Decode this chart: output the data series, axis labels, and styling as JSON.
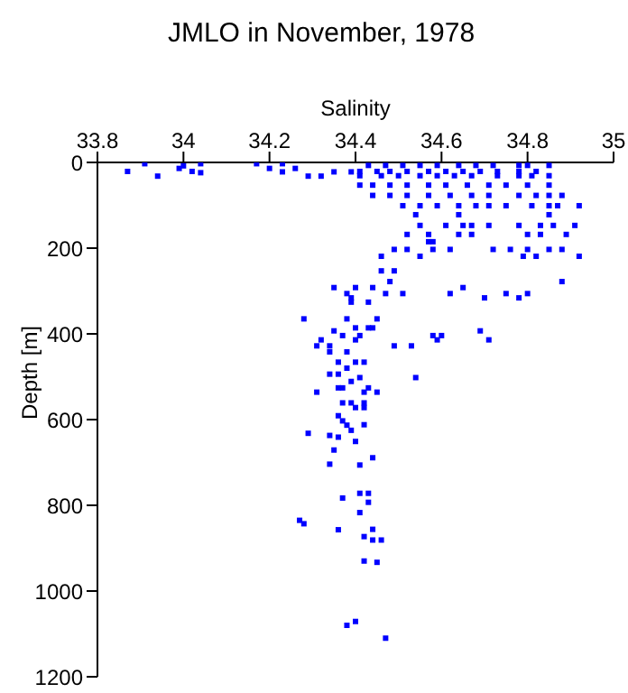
{
  "chart_data": {
    "type": "scatter",
    "title": "JMLO in November, 1978",
    "xlabel": "Salinity",
    "ylabel": "Depth [m]",
    "xlim": [
      33.8,
      35
    ],
    "xticks": [
      33.8,
      34,
      34.2,
      34.4,
      34.6,
      34.8,
      35
    ],
    "ylim": [
      1200,
      0
    ],
    "yticks": [
      0,
      200,
      400,
      600,
      800,
      1000,
      1200
    ],
    "grid": false,
    "legend": false,
    "marker": "square",
    "color": "#0000ff",
    "x": [
      33.87,
      33.91,
      33.94,
      33.99,
      34.0,
      34.02,
      34.04,
      34.04,
      34.17,
      34.2,
      34.23,
      34.23,
      34.26,
      34.29,
      34.32,
      34.35,
      34.39,
      34.43,
      34.47,
      34.51,
      34.55,
      34.59,
      34.64,
      34.68,
      34.72,
      34.78,
      34.8,
      34.85,
      34.41,
      34.45,
      34.48,
      34.52,
      34.57,
      34.61,
      34.65,
      34.69,
      34.73,
      34.78,
      34.82,
      34.41,
      34.46,
      34.5,
      34.55,
      34.59,
      34.63,
      34.67,
      34.73,
      34.78,
      34.81,
      34.85,
      34.41,
      34.44,
      34.48,
      34.52,
      34.57,
      34.61,
      34.66,
      34.71,
      34.75,
      34.8,
      34.85,
      34.44,
      34.48,
      34.52,
      34.57,
      34.62,
      34.67,
      34.71,
      34.78,
      34.82,
      34.85,
      34.88,
      34.51,
      34.55,
      34.59,
      34.64,
      34.68,
      34.71,
      34.75,
      34.81,
      34.85,
      34.87,
      34.92,
      34.54,
      34.64,
      34.85,
      34.55,
      34.61,
      34.65,
      34.67,
      34.71,
      34.78,
      34.83,
      34.86,
      34.91,
      34.52,
      34.57,
      34.64,
      34.67,
      34.8,
      34.83,
      34.89,
      34.57,
      34.58,
      34.49,
      34.52,
      34.58,
      34.62,
      34.72,
      34.76,
      34.8,
      34.85,
      34.88,
      34.46,
      34.55,
      34.79,
      34.82,
      34.92,
      34.46,
      34.49,
      34.48,
      34.88,
      34.35,
      34.4,
      34.44,
      34.65,
      34.38,
      34.47,
      34.51,
      34.62,
      34.75,
      34.8,
      34.39,
      34.7,
      34.78,
      34.39,
      34.43,
      34.28,
      34.38,
      34.45,
      34.4,
      34.43,
      34.44,
      34.35,
      34.69,
      34.37,
      34.41,
      34.58,
      34.6,
      34.32,
      34.4,
      34.59,
      34.71,
      34.31,
      34.34,
      34.49,
      34.53,
      34.34,
      34.38,
      34.36,
      34.4,
      34.42,
      34.38,
      34.34,
      34.36,
      34.41,
      34.54,
      34.39,
      34.36,
      34.37,
      34.43,
      34.31,
      34.42,
      34.45,
      34.37,
      34.39,
      34.42,
      34.4,
      34.42,
      34.36,
      34.37,
      34.38,
      34.39,
      34.29,
      34.34,
      34.36,
      34.4,
      34.42,
      34.35,
      34.44,
      34.34,
      34.41,
      34.37,
      34.41,
      34.43,
      34.43,
      34.41,
      34.27,
      34.28,
      34.36,
      34.44,
      34.42,
      34.44,
      34.46,
      34.42,
      34.45,
      34.4,
      34.38,
      34.47
    ],
    "values": [
      21,
      3,
      32,
      14,
      8,
      21,
      24,
      3,
      3,
      14,
      3,
      22,
      14,
      32,
      32,
      22,
      22,
      7,
      7,
      7,
      7,
      7,
      7,
      7,
      7,
      7,
      7,
      7,
      21,
      21,
      21,
      21,
      21,
      21,
      21,
      21,
      21,
      21,
      21,
      31,
      31,
      31,
      31,
      31,
      31,
      31,
      31,
      31,
      31,
      31,
      53,
      53,
      53,
      53,
      53,
      53,
      53,
      53,
      53,
      53,
      53,
      77,
      77,
      77,
      77,
      77,
      77,
      77,
      77,
      77,
      77,
      77,
      101,
      101,
      101,
      101,
      101,
      101,
      101,
      101,
      101,
      101,
      101,
      122,
      122,
      122,
      147,
      147,
      147,
      147,
      147,
      147,
      147,
      147,
      147,
      168,
      168,
      168,
      168,
      168,
      168,
      168,
      185,
      185,
      203,
      203,
      203,
      203,
      203,
      203,
      203,
      203,
      203,
      219,
      219,
      219,
      219,
      219,
      253,
      253,
      278,
      278,
      292,
      292,
      292,
      292,
      306,
      306,
      306,
      306,
      306,
      306,
      316,
      316,
      316,
      326,
      326,
      365,
      365,
      365,
      386,
      386,
      386,
      393,
      393,
      404,
      404,
      404,
      404,
      414,
      414,
      414,
      414,
      428,
      428,
      428,
      428,
      442,
      442,
      466,
      466,
      466,
      480,
      494,
      494,
      502,
      502,
      511,
      526,
      526,
      526,
      536,
      536,
      536,
      561,
      561,
      561,
      572,
      572,
      591,
      603,
      613,
      625,
      632,
      637,
      641,
      651,
      612,
      671,
      689,
      704,
      706,
      783,
      772,
      772,
      793,
      817,
      835,
      843,
      857,
      856,
      873,
      881,
      881,
      930,
      933,
      1071,
      1080,
      1110
    ]
  }
}
